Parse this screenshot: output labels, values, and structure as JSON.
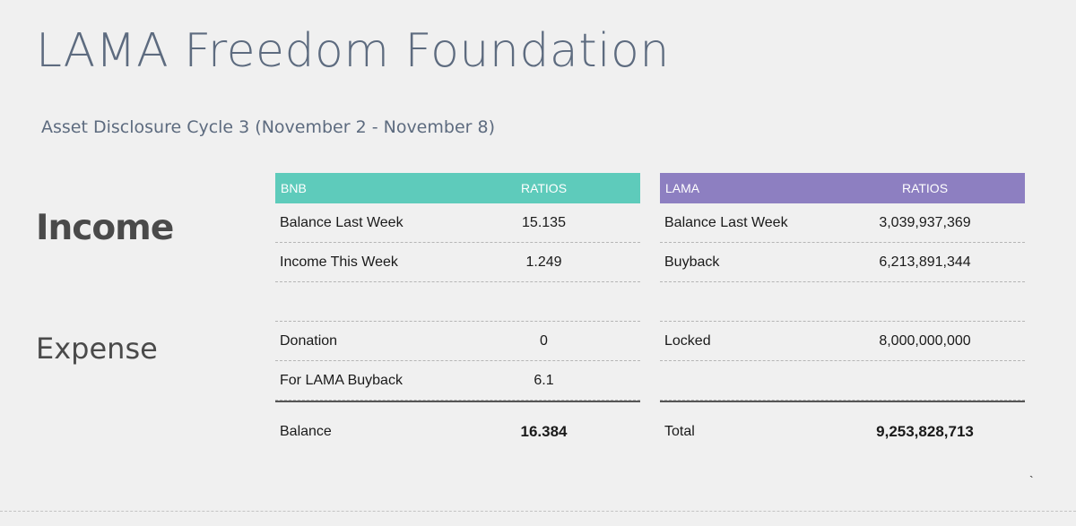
{
  "title": "LAMA Freedom Foundation",
  "subtitle": "Asset Disclosure Cycle 3 (November 2 - November 8)",
  "sections": {
    "income": "Income",
    "expense": "Expense"
  },
  "colors": {
    "bnb_header": "#5ecbbb",
    "lama_header": "#8d7fc1",
    "title": "#5d6b7f"
  },
  "bnb_table": {
    "header": [
      "BNB",
      "RATIOS"
    ],
    "rows": [
      [
        "Balance Last Week",
        "15.135"
      ],
      [
        "Income This Week",
        "1.249"
      ],
      [
        "",
        ""
      ],
      [
        "Donation",
        "0"
      ],
      [
        "For LAMA Buyback",
        "6.1"
      ]
    ],
    "total": [
      "Balance",
      "16.384"
    ]
  },
  "lama_table": {
    "header": [
      "LAMA",
      "RATIOS"
    ],
    "rows": [
      [
        "Balance Last Week",
        "3,039,937,369"
      ],
      [
        "Buyback",
        "6,213,891,344"
      ],
      [
        "",
        ""
      ],
      [
        "Locked",
        "8,000,000,000"
      ],
      [
        "",
        ""
      ]
    ],
    "total": [
      "Total",
      "9,253,828,713"
    ]
  },
  "stray_mark": "`"
}
